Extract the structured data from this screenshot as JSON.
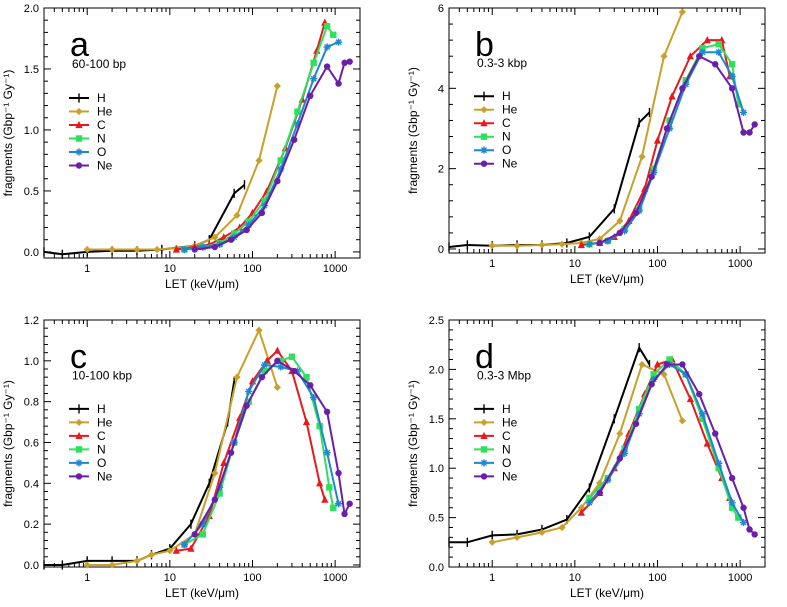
{
  "colors": {
    "H": "#000000",
    "He": "#c8a02a",
    "C": "#e8191d",
    "N": "#2ee05a",
    "O": "#1f86d0",
    "Ne": "#6a1fa8"
  },
  "chart_data": [
    {
      "type": "line",
      "panel": "a",
      "subtitle": "60-100 bp",
      "xlabel": "LET (keV/μm)",
      "ylabel": "fragments (Gbp⁻¹ Gy⁻¹)",
      "xscale": "log",
      "xlim": [
        0.3,
        2000
      ],
      "ylim": [
        -0.05,
        2.0
      ],
      "xticks": [
        1,
        10,
        100,
        1000
      ],
      "xticklabels": [
        "1",
        "10",
        "100",
        "1000"
      ],
      "yticks": [
        0.0,
        0.5,
        1.0,
        1.5,
        2.0
      ],
      "yticklabels": [
        "0.0",
        "0.5",
        "1.0",
        "1.5",
        "2.0"
      ],
      "legend": [
        "H",
        "He",
        "C",
        "N",
        "O",
        "Ne"
      ],
      "legend_position": "left",
      "series": [
        {
          "name": "H",
          "x": [
            0.3,
            0.5,
            1,
            2,
            4,
            8,
            20,
            30,
            60,
            80
          ],
          "y": [
            0.0,
            -0.02,
            0.0,
            0.01,
            0.01,
            0.02,
            0.05,
            0.1,
            0.48,
            0.55
          ]
        },
        {
          "name": "He",
          "x": [
            1,
            2,
            4,
            7,
            12,
            20,
            35,
            65,
            120,
            200
          ],
          "y": [
            0.02,
            0.02,
            0.02,
            0.02,
            0.03,
            0.05,
            0.12,
            0.3,
            0.75,
            1.36
          ]
        },
        {
          "name": "C",
          "x": [
            12,
            20,
            30,
            45,
            70,
            100,
            150,
            250,
            400,
            600,
            750
          ],
          "y": [
            0.02,
            0.04,
            0.06,
            0.12,
            0.2,
            0.32,
            0.5,
            0.85,
            1.25,
            1.65,
            1.88
          ]
        },
        {
          "name": "N",
          "x": [
            15,
            25,
            40,
            60,
            90,
            140,
            220,
            350,
            550,
            800,
            950
          ],
          "y": [
            0.02,
            0.04,
            0.07,
            0.15,
            0.25,
            0.42,
            0.75,
            1.15,
            1.55,
            1.85,
            1.78
          ]
        },
        {
          "name": "O",
          "x": [
            15,
            25,
            40,
            60,
            90,
            140,
            220,
            350,
            550,
            800,
            1100
          ],
          "y": [
            0.02,
            0.04,
            0.06,
            0.12,
            0.22,
            0.38,
            0.68,
            1.05,
            1.42,
            1.68,
            1.72
          ]
        },
        {
          "name": "Ne",
          "x": [
            20,
            35,
            55,
            85,
            130,
            200,
            320,
            500,
            800,
            1100,
            1300,
            1500
          ],
          "y": [
            0.02,
            0.04,
            0.1,
            0.18,
            0.32,
            0.58,
            0.92,
            1.28,
            1.52,
            1.38,
            1.55,
            1.56
          ]
        }
      ]
    },
    {
      "type": "line",
      "panel": "b",
      "subtitle": "0.3-3 kbp",
      "xlabel": "LET (keV/μm)",
      "ylabel": "fragments (Gbp⁻¹ Gy⁻¹)",
      "xscale": "log",
      "xlim": [
        0.3,
        2000
      ],
      "ylim": [
        -0.1,
        6.0
      ],
      "xticks": [
        1,
        10,
        100,
        1000
      ],
      "xticklabels": [
        "1",
        "10",
        "100",
        "1000"
      ],
      "yticks": [
        0,
        2,
        4,
        6
      ],
      "yticklabels": [
        "0",
        "2",
        "4",
        "6"
      ],
      "legend": [
        "H",
        "He",
        "C",
        "N",
        "O",
        "Ne"
      ],
      "legend_position": "left",
      "series": [
        {
          "name": "H",
          "x": [
            0.3,
            0.5,
            1,
            2,
            4,
            8,
            15,
            30,
            60,
            80
          ],
          "y": [
            0.05,
            0.1,
            0.08,
            0.1,
            0.1,
            0.15,
            0.3,
            1.0,
            3.15,
            3.4
          ]
        },
        {
          "name": "He",
          "x": [
            1,
            2,
            4,
            7,
            12,
            20,
            35,
            65,
            120,
            200
          ],
          "y": [
            0.08,
            0.08,
            0.1,
            0.12,
            0.15,
            0.25,
            0.7,
            2.3,
            4.8,
            5.9
          ]
        },
        {
          "name": "C",
          "x": [
            12,
            20,
            30,
            45,
            70,
            100,
            150,
            250,
            400,
            600,
            750
          ],
          "y": [
            0.1,
            0.15,
            0.3,
            0.7,
            1.5,
            2.7,
            3.8,
            4.8,
            5.2,
            5.2,
            4.3
          ]
        },
        {
          "name": "N",
          "x": [
            15,
            25,
            40,
            60,
            90,
            140,
            220,
            350,
            550,
            800,
            950
          ],
          "y": [
            0.12,
            0.2,
            0.5,
            1.0,
            2.0,
            3.2,
            4.2,
            5.0,
            5.1,
            4.6,
            3.6
          ]
        },
        {
          "name": "O",
          "x": [
            15,
            25,
            40,
            60,
            90,
            140,
            220,
            350,
            550,
            800,
            1100
          ],
          "y": [
            0.12,
            0.2,
            0.45,
            0.95,
            1.9,
            3.0,
            4.1,
            4.9,
            4.9,
            4.3,
            3.4
          ]
        },
        {
          "name": "Ne",
          "x": [
            20,
            35,
            55,
            85,
            130,
            200,
            320,
            500,
            800,
            1100,
            1300,
            1500
          ],
          "y": [
            0.15,
            0.4,
            0.9,
            1.8,
            3.0,
            4.0,
            4.8,
            4.6,
            4.0,
            2.9,
            2.9,
            3.1
          ]
        }
      ]
    },
    {
      "type": "line",
      "panel": "c",
      "subtitle": "10-100 kbp",
      "xlabel": "LET (keV/μm)",
      "ylabel": "fragments (Gbp⁻¹ Gy⁻¹)",
      "xscale": "log",
      "xlim": [
        0.3,
        2000
      ],
      "ylim": [
        -0.01,
        1.2
      ],
      "xticks": [
        1,
        10,
        100,
        1000
      ],
      "xticklabels": [
        "1",
        "10",
        "100",
        "1000"
      ],
      "yticks": [
        0.0,
        0.2,
        0.4,
        0.6,
        0.8,
        1.0,
        1.2
      ],
      "yticklabels": [
        "0.0",
        "0.2",
        "0.4",
        "0.6",
        "0.8",
        "1.0",
        "1.2"
      ],
      "legend": [
        "H",
        "He",
        "C",
        "N",
        "O",
        "Ne"
      ],
      "legend_position": "left",
      "series": [
        {
          "name": "H",
          "x": [
            0.3,
            0.5,
            1,
            2,
            4,
            6,
            10,
            18,
            30,
            50,
            60
          ],
          "y": [
            0.0,
            0.0,
            0.02,
            0.02,
            0.02,
            0.05,
            0.08,
            0.2,
            0.4,
            0.7,
            0.9
          ]
        },
        {
          "name": "He",
          "x": [
            1,
            2,
            4,
            6,
            10,
            20,
            35,
            65,
            120,
            200
          ],
          "y": [
            0.0,
            0.0,
            0.02,
            0.05,
            0.07,
            0.15,
            0.45,
            0.92,
            1.15,
            0.87
          ]
        },
        {
          "name": "C",
          "x": [
            12,
            18,
            30,
            45,
            70,
            100,
            150,
            200,
            300,
            450,
            650,
            750
          ],
          "y": [
            0.07,
            0.08,
            0.24,
            0.5,
            0.72,
            0.9,
            1.0,
            1.05,
            0.95,
            0.7,
            0.4,
            0.32
          ]
        },
        {
          "name": "N",
          "x": [
            15,
            25,
            40,
            60,
            90,
            140,
            220,
            300,
            450,
            650,
            850,
            950
          ],
          "y": [
            0.1,
            0.15,
            0.35,
            0.6,
            0.8,
            0.95,
            1.0,
            1.02,
            0.92,
            0.68,
            0.38,
            0.28
          ]
        },
        {
          "name": "O",
          "x": [
            15,
            25,
            40,
            60,
            90,
            140,
            220,
            350,
            550,
            800,
            1100
          ],
          "y": [
            0.1,
            0.2,
            0.38,
            0.6,
            0.85,
            0.98,
            0.97,
            0.95,
            0.82,
            0.55,
            0.3
          ]
        },
        {
          "name": "Ne",
          "x": [
            20,
            35,
            55,
            85,
            130,
            200,
            320,
            500,
            800,
            1100,
            1300,
            1500
          ],
          "y": [
            0.15,
            0.32,
            0.55,
            0.78,
            0.92,
            1.0,
            0.95,
            0.88,
            0.75,
            0.45,
            0.25,
            0.3
          ]
        }
      ]
    },
    {
      "type": "line",
      "panel": "d",
      "subtitle": "0.3-3 Mbp",
      "xlabel": "LET (keV/μm)",
      "ylabel": "fragments (Gbp⁻¹ Gy⁻¹)",
      "xscale": "log",
      "xlim": [
        0.3,
        2000
      ],
      "ylim": [
        0.0,
        2.5
      ],
      "xticks": [
        1,
        10,
        100,
        1000
      ],
      "xticklabels": [
        "1",
        "10",
        "100",
        "1000"
      ],
      "yticks": [
        0.0,
        0.5,
        1.0,
        1.5,
        2.0,
        2.5
      ],
      "yticklabels": [
        "0.0",
        "0.5",
        "1.0",
        "1.5",
        "2.0",
        "2.5"
      ],
      "legend": [
        "H",
        "He",
        "C",
        "N",
        "O",
        "Ne"
      ],
      "legend_position": "left",
      "series": [
        {
          "name": "H",
          "x": [
            0.3,
            0.5,
            1,
            2,
            4,
            8,
            15,
            30,
            60,
            80
          ],
          "y": [
            0.25,
            0.25,
            0.32,
            0.33,
            0.38,
            0.48,
            0.8,
            1.5,
            2.22,
            2.05
          ]
        },
        {
          "name": "He",
          "x": [
            1,
            2,
            4,
            7,
            12,
            20,
            35,
            65,
            120,
            200
          ],
          "y": [
            0.25,
            0.3,
            0.35,
            0.4,
            0.6,
            0.85,
            1.35,
            2.05,
            1.95,
            1.48
          ]
        },
        {
          "name": "C",
          "x": [
            12,
            20,
            30,
            45,
            70,
            100,
            150,
            250,
            400,
            600,
            750
          ],
          "y": [
            0.55,
            0.75,
            1.0,
            1.35,
            1.75,
            2.05,
            2.1,
            1.7,
            1.25,
            0.9,
            0.7
          ]
        },
        {
          "name": "N",
          "x": [
            15,
            25,
            40,
            60,
            90,
            140,
            220,
            350,
            550,
            800,
            950
          ],
          "y": [
            0.7,
            0.9,
            1.2,
            1.6,
            1.95,
            2.1,
            1.95,
            1.5,
            1.0,
            0.6,
            0.5
          ]
        },
        {
          "name": "O",
          "x": [
            15,
            25,
            40,
            60,
            90,
            140,
            220,
            350,
            550,
            800,
            1100
          ],
          "y": [
            0.65,
            0.88,
            1.15,
            1.55,
            1.9,
            2.05,
            1.95,
            1.55,
            1.05,
            0.65,
            0.45
          ]
        },
        {
          "name": "Ne",
          "x": [
            20,
            35,
            55,
            85,
            130,
            200,
            320,
            500,
            800,
            1100,
            1300,
            1500
          ],
          "y": [
            0.75,
            1.1,
            1.45,
            1.85,
            2.05,
            2.05,
            1.75,
            1.35,
            0.9,
            0.6,
            0.38,
            0.33
          ]
        }
      ]
    }
  ]
}
